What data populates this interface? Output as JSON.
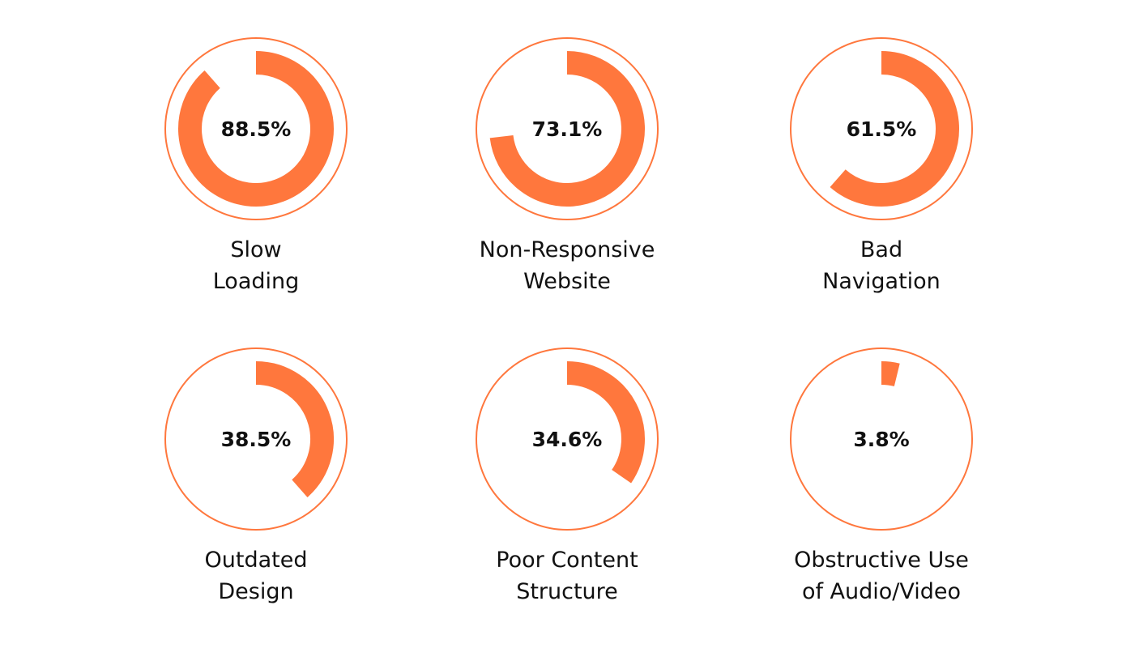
{
  "chart_data": {
    "type": "donut-grid",
    "color": "#FF773D",
    "ring_color": "#FF773D",
    "value_range": [
      0,
      100
    ],
    "items": [
      {
        "value": 88.5,
        "value_label": "88.5%",
        "label_lines": [
          "Slow",
          "Loading"
        ]
      },
      {
        "value": 73.1,
        "value_label": "73.1%",
        "label_lines": [
          "Non-Responsive",
          "Website"
        ]
      },
      {
        "value": 61.5,
        "value_label": "61.5%",
        "label_lines": [
          "Bad",
          "Navigation"
        ]
      },
      {
        "value": 38.5,
        "value_label": "38.5%",
        "label_lines": [
          "Outdated",
          "Design"
        ]
      },
      {
        "value": 34.6,
        "value_label": "34.6%",
        "label_lines": [
          "Poor Content",
          "Structure"
        ]
      },
      {
        "value": 3.8,
        "value_label": "3.8%",
        "label_lines": [
          "Obstructive Use",
          "of Audio/Video"
        ]
      }
    ]
  }
}
